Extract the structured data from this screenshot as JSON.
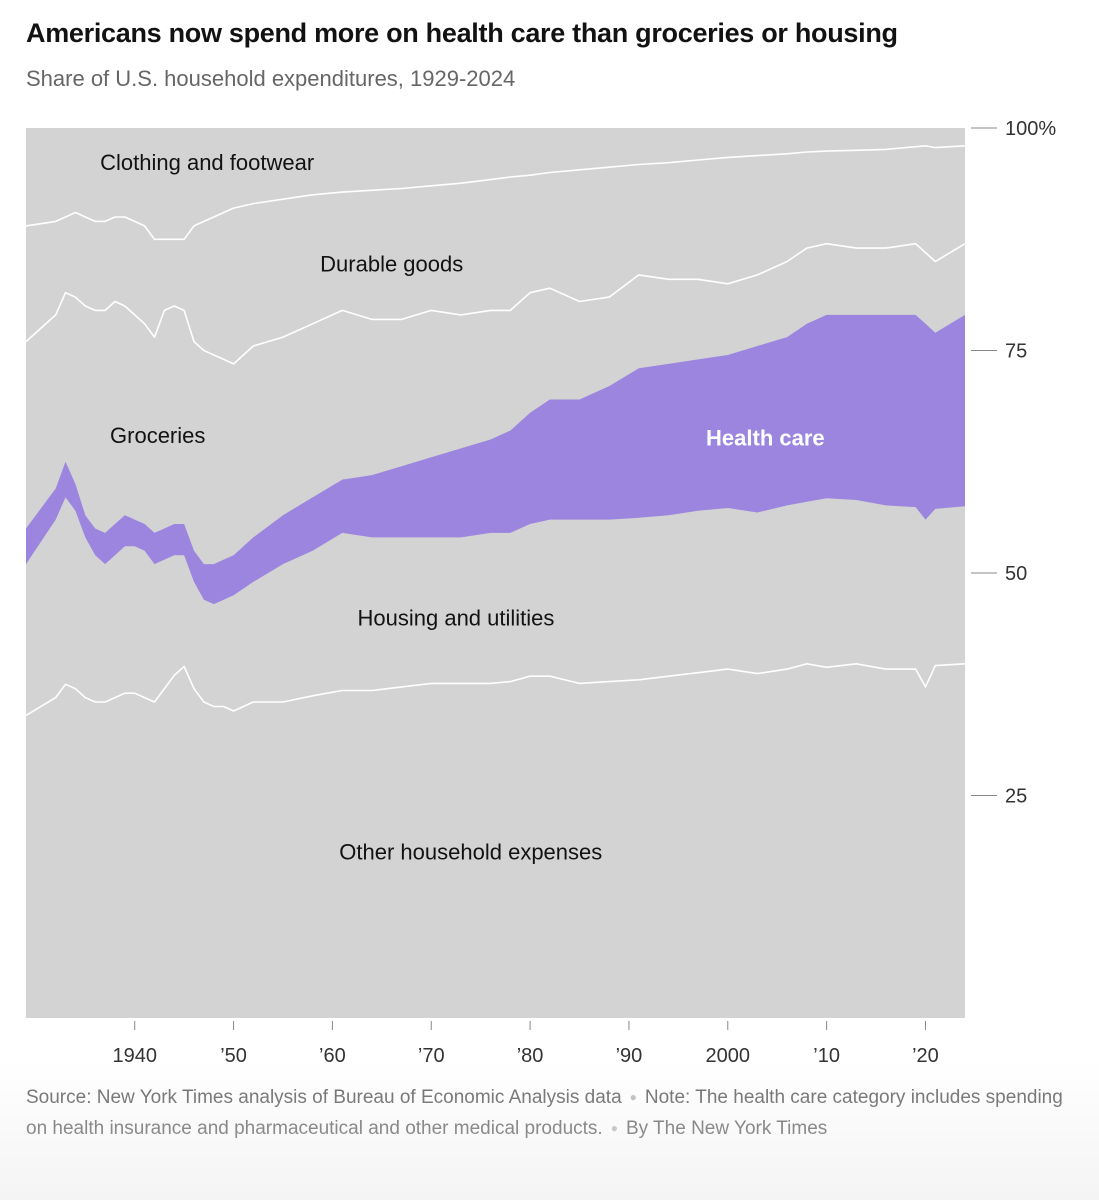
{
  "title": "Americans now spend more on health care than groceries or housing",
  "subtitle": "Share of U.S. household expenditures, 1929-2024",
  "colors": {
    "band": "#d3d3d3",
    "health": "#9b85df",
    "boundary": "#ffffff",
    "axis_text": "#333333",
    "tick": "#888888"
  },
  "chart_data": {
    "type": "area",
    "stacked": true,
    "xlabel": "",
    "ylabel": "",
    "xlim": [
      1929,
      2024
    ],
    "ylim": [
      0,
      100
    ],
    "y_ticks": [
      {
        "value": 100,
        "label": "100%"
      },
      {
        "value": 75,
        "label": "75"
      },
      {
        "value": 50,
        "label": "50"
      },
      {
        "value": 25,
        "label": "25"
      }
    ],
    "x_ticks": [
      {
        "value": 1940,
        "label": "1940"
      },
      {
        "value": 1950,
        "label": "'50"
      },
      {
        "value": 1960,
        "label": "'60"
      },
      {
        "value": 1970,
        "label": "'70"
      },
      {
        "value": 1980,
        "label": "'80"
      },
      {
        "value": 1990,
        "label": "'90"
      },
      {
        "value": 2000,
        "label": "2000"
      },
      {
        "value": 2010,
        "label": "'10"
      },
      {
        "value": 2020,
        "label": "'20"
      }
    ],
    "grid": false,
    "series_order_bottom_to_top": [
      "Other household expenses",
      "Housing and utilities",
      "Health care",
      "Groceries",
      "Durable goods",
      "Clothing and footwear"
    ],
    "cumulative_boundaries": {
      "x": [
        1929,
        1932,
        1933,
        1934,
        1935,
        1936,
        1937,
        1938,
        1939,
        1940,
        1941,
        1942,
        1943,
        1944,
        1945,
        1946,
        1947,
        1948,
        1949,
        1950,
        1952,
        1955,
        1958,
        1961,
        1964,
        1967,
        1970,
        1973,
        1976,
        1978,
        1980,
        1982,
        1985,
        1988,
        1991,
        1994,
        1997,
        2000,
        2003,
        2006,
        2008,
        2010,
        2013,
        2016,
        2019,
        2020,
        2021,
        2024
      ],
      "other_top": [
        34,
        36,
        37.5,
        37,
        36,
        35.5,
        35.5,
        36,
        36.5,
        36.5,
        36,
        35.5,
        37,
        38.5,
        39.5,
        37,
        35.5,
        35,
        35,
        34.5,
        35.5,
        35.5,
        36.2,
        36.8,
        36.8,
        37.2,
        37.6,
        37.6,
        37.6,
        37.8,
        38.4,
        38.4,
        37.6,
        37.8,
        38,
        38.4,
        38.8,
        39.2,
        38.7,
        39.2,
        39.8,
        39.4,
        39.8,
        39.2,
        39.2,
        37.2,
        39.6,
        39.8
      ],
      "housing_top": [
        51,
        56,
        58.5,
        57,
        54,
        52,
        51,
        52,
        53,
        53,
        52.5,
        51,
        51.5,
        52,
        52,
        49,
        47,
        46.5,
        47,
        47.5,
        49,
        51,
        52.5,
        54.5,
        54,
        54,
        54,
        54,
        54.5,
        54.5,
        55.5,
        56,
        56,
        56,
        56.2,
        56.5,
        57,
        57.3,
        56.8,
        57.6,
        58,
        58.4,
        58.2,
        57.6,
        57.4,
        56,
        57.2,
        57.5
      ],
      "health_top": [
        55,
        59.5,
        62.5,
        60,
        56.5,
        55,
        54.5,
        55.5,
        56.5,
        56,
        55.5,
        54.5,
        55,
        55.5,
        55.5,
        52.5,
        51,
        51,
        51.5,
        52,
        54,
        56.5,
        58.5,
        60.5,
        61,
        62,
        63,
        64,
        65,
        66,
        68,
        69.5,
        69.5,
        71,
        73,
        73.5,
        74,
        74.5,
        75.5,
        76.5,
        78,
        79,
        79,
        79,
        79,
        78,
        77,
        79
      ],
      "groceries_top": [
        76,
        79,
        81.5,
        81,
        80,
        79.5,
        79.5,
        80.5,
        80,
        79,
        78,
        76.5,
        79.5,
        80,
        79.5,
        76,
        75,
        74.5,
        74,
        73.5,
        75.5,
        76.5,
        78,
        79.5,
        78.5,
        78.5,
        79.5,
        79,
        79.5,
        79.5,
        81.5,
        82,
        80.5,
        81,
        83.5,
        83,
        83,
        82.5,
        83.5,
        85,
        86.5,
        87,
        86.5,
        86.5,
        87,
        86,
        85,
        87
      ],
      "durable_top": [
        89,
        89.5,
        90,
        90.5,
        90,
        89.5,
        89.5,
        90,
        90,
        89.5,
        89,
        87.5,
        87.5,
        87.5,
        87.5,
        89,
        89.5,
        90,
        90.5,
        91,
        91.5,
        92,
        92.5,
        92.8,
        93,
        93.2,
        93.5,
        93.8,
        94.2,
        94.5,
        94.7,
        95,
        95.3,
        95.6,
        95.9,
        96.1,
        96.4,
        96.7,
        96.9,
        97.1,
        97.3,
        97.4,
        97.5,
        97.6,
        97.9,
        98,
        97.8,
        98
      ],
      "clothing_top": [
        100,
        100,
        100,
        100,
        100,
        100,
        100,
        100,
        100,
        100,
        100,
        100,
        100,
        100,
        100,
        100,
        100,
        100,
        100,
        100,
        100,
        100,
        100,
        100,
        100,
        100,
        100,
        100,
        100,
        100,
        100,
        100,
        100,
        100,
        100,
        100,
        100,
        100,
        100,
        100,
        100,
        100,
        100,
        100,
        100,
        100,
        100,
        100
      ]
    },
    "series_labels": [
      {
        "name": "Clothing and footwear",
        "anchor": "start",
        "at_x": 1936.5,
        "at_y": 96.2
      },
      {
        "name": "Durable goods",
        "anchor": "middle",
        "at_x": 1966,
        "at_y": 84.8
      },
      {
        "name": "Groceries",
        "anchor": "start",
        "at_x": 1937.5,
        "at_y": 65.5
      },
      {
        "name": "Health care",
        "anchor": "middle",
        "at_x": 2003.8,
        "at_y": 65.2,
        "emphasis": true
      },
      {
        "name": "Housing and utilities",
        "anchor": "middle",
        "at_x": 1972.5,
        "at_y": 45
      },
      {
        "name": "Other household expenses",
        "anchor": "middle",
        "at_x": 1974,
        "at_y": 18.7
      }
    ]
  },
  "footer": {
    "source": "Source: New York Times analysis of Bureau of Economic Analysis data",
    "separator": "●",
    "note": "Note: The health care category includes spending on health insurance and pharmaceutical and other medical products.",
    "byline": "By The New York Times"
  }
}
